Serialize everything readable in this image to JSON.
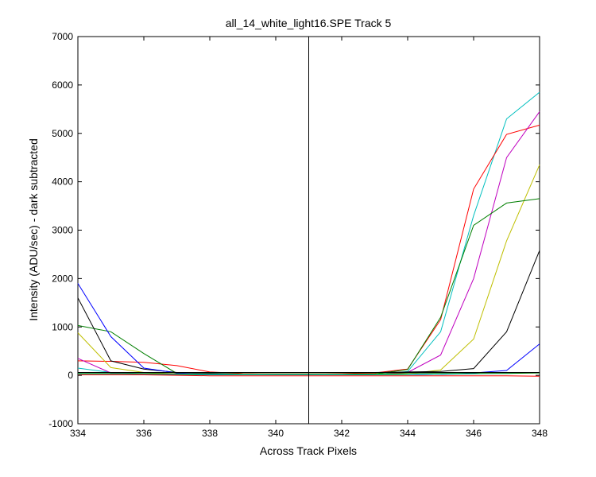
{
  "chart_data": {
    "type": "line",
    "title": "all_14_white_light16.SPE   Track 5",
    "xlabel": "Across Track Pixels",
    "ylabel": "Intensity (ADU/sec) - dark subtracted",
    "xlim": [
      334,
      348
    ],
    "ylim": [
      -1000,
      7000
    ],
    "xticks": [
      334,
      336,
      338,
      340,
      342,
      344,
      346,
      348
    ],
    "yticks": [
      -1000,
      0,
      1000,
      2000,
      3000,
      4000,
      5000,
      6000,
      7000
    ],
    "grid": false,
    "marker_line_x": 341,
    "x": [
      334,
      335,
      336,
      337,
      338,
      339,
      340,
      341,
      342,
      343,
      344,
      345,
      346,
      347,
      348
    ],
    "series": [
      {
        "color": "#00bfbf",
        "values": [
          150,
          60,
          30,
          20,
          10,
          10,
          10,
          10,
          10,
          20,
          80,
          900,
          3300,
          5300,
          5850
        ]
      },
      {
        "color": "#ff0000",
        "values": [
          300,
          290,
          270,
          200,
          70,
          40,
          30,
          30,
          40,
          50,
          130,
          1150,
          3850,
          4980,
          5170
        ]
      },
      {
        "color": "#bf00bf",
        "values": [
          350,
          50,
          30,
          20,
          10,
          10,
          10,
          10,
          10,
          20,
          60,
          420,
          2000,
          4500,
          5450
        ]
      },
      {
        "color": "#bfbf00",
        "values": [
          880,
          160,
          60,
          30,
          20,
          10,
          10,
          10,
          10,
          20,
          30,
          110,
          750,
          2780,
          4350
        ]
      },
      {
        "color": "#007f00",
        "values": [
          1030,
          900,
          450,
          40,
          20,
          10,
          10,
          10,
          10,
          30,
          120,
          1200,
          3100,
          3560,
          3650
        ]
      },
      {
        "color": "#000000",
        "values": [
          1600,
          300,
          130,
          60,
          50,
          60,
          60,
          60,
          60,
          60,
          70,
          80,
          140,
          900,
          2580
        ]
      },
      {
        "color": "#0000ff",
        "values": [
          1900,
          800,
          150,
          50,
          20,
          10,
          10,
          10,
          10,
          10,
          10,
          20,
          50,
          100,
          650
        ]
      },
      {
        "color": "#00bfbf",
        "values": [
          20,
          20,
          20,
          10,
          10,
          10,
          10,
          10,
          10,
          10,
          10,
          20,
          30,
          40,
          60
        ]
      },
      {
        "color": "#ff0000",
        "values": [
          10,
          10,
          10,
          0,
          -10,
          -10,
          -10,
          -10,
          -10,
          -10,
          -10,
          -10,
          -10,
          -10,
          -20
        ]
      },
      {
        "color": "#007f00",
        "values": [
          40,
          40,
          40,
          30,
          30,
          30,
          30,
          30,
          30,
          30,
          40,
          40,
          40,
          40,
          50
        ]
      },
      {
        "color": "#000000",
        "values": [
          60,
          60,
          60,
          60,
          60,
          60,
          60,
          60,
          60,
          60,
          60,
          60,
          60,
          60,
          60
        ]
      }
    ]
  }
}
